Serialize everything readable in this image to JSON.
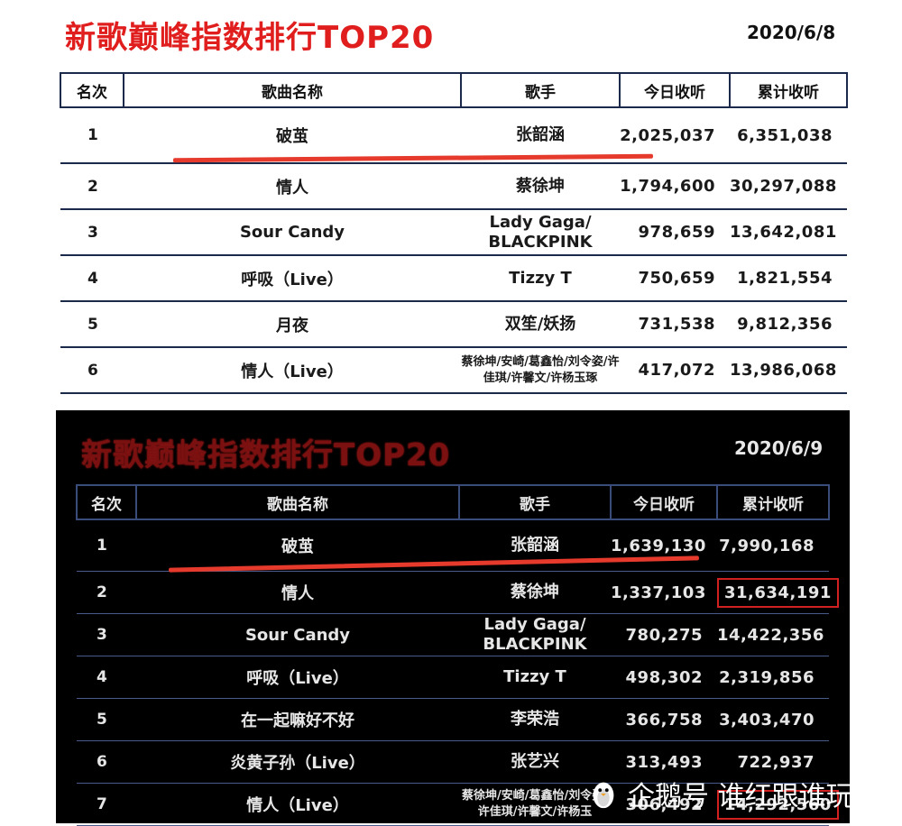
{
  "top": {
    "title": "新歌巅峰指数排行TOP20",
    "date": "2020/6/8",
    "headers": [
      "名次",
      "歌曲名称",
      "歌手",
      "今日收听",
      "累计收听"
    ],
    "rows": [
      {
        "rank": "1",
        "song": "破茧",
        "artist": "张韶涵",
        "today": "2,025,037",
        "total": "6,351,038"
      },
      {
        "rank": "2",
        "song": "情人",
        "artist": "蔡徐坤",
        "today": "1,794,600",
        "total": "30,297,088"
      },
      {
        "rank": "3",
        "song": "Sour Candy",
        "artist": "Lady Gaga/ BLACKPINK",
        "today": "978,659",
        "total": "13,642,081"
      },
      {
        "rank": "4",
        "song": "呼吸（Live）",
        "artist": "Tizzy T",
        "today": "750,659",
        "total": "1,821,554"
      },
      {
        "rank": "5",
        "song": "月夜",
        "artist": "双笙/妖扬",
        "today": "731,538",
        "total": "9,812,356"
      },
      {
        "rank": "6",
        "song": "情人（Live）",
        "artist": "蔡徐坤/安崎/葛鑫怡/刘令姿/许佳琪/许馨文/许杨玉琢",
        "today": "417,072",
        "total": "13,986,068"
      }
    ]
  },
  "bottom": {
    "title": "新歌巅峰指数排行TOP20",
    "date": "2020/6/9",
    "headers": [
      "名次",
      "歌曲名称",
      "歌手",
      "今日收听",
      "累计收听"
    ],
    "rows": [
      {
        "rank": "1",
        "song": "破茧",
        "artist": "张韶涵",
        "today": "1,639,130",
        "total": "7,990,168"
      },
      {
        "rank": "2",
        "song": "情人",
        "artist": "蔡徐坤",
        "today": "1,337,103",
        "total": "31,634,191"
      },
      {
        "rank": "3",
        "song": "Sour Candy",
        "artist": "Lady Gaga/ BLACKPINK",
        "today": "780,275",
        "total": "14,422,356"
      },
      {
        "rank": "4",
        "song": "呼吸（Live）",
        "artist": "Tizzy T",
        "today": "498,302",
        "total": "2,319,856"
      },
      {
        "rank": "5",
        "song": "在一起嘛好不好",
        "artist": "李荣浩",
        "today": "366,758",
        "total": "3,403,470"
      },
      {
        "rank": "6",
        "song": "炎黄子孙（Live）",
        "artist": "张艺兴",
        "today": "313,493",
        "total": "722,937"
      },
      {
        "rank": "7",
        "song": "情人（Live）",
        "artist": "蔡徐坤/安崎/葛鑫怡/刘令姿/许佳琪/许馨文/许杨玉",
        "today": "306,492",
        "total": "14,292,560"
      }
    ]
  },
  "watermark": {
    "text": "企鹅号 谁红跟谁玩",
    "icon": "penguin-icon"
  },
  "colors": {
    "title_red": "#e01e1e",
    "underline_red": "#e53a2c",
    "box_red": "#d12020",
    "dark_bg": "#000000"
  }
}
